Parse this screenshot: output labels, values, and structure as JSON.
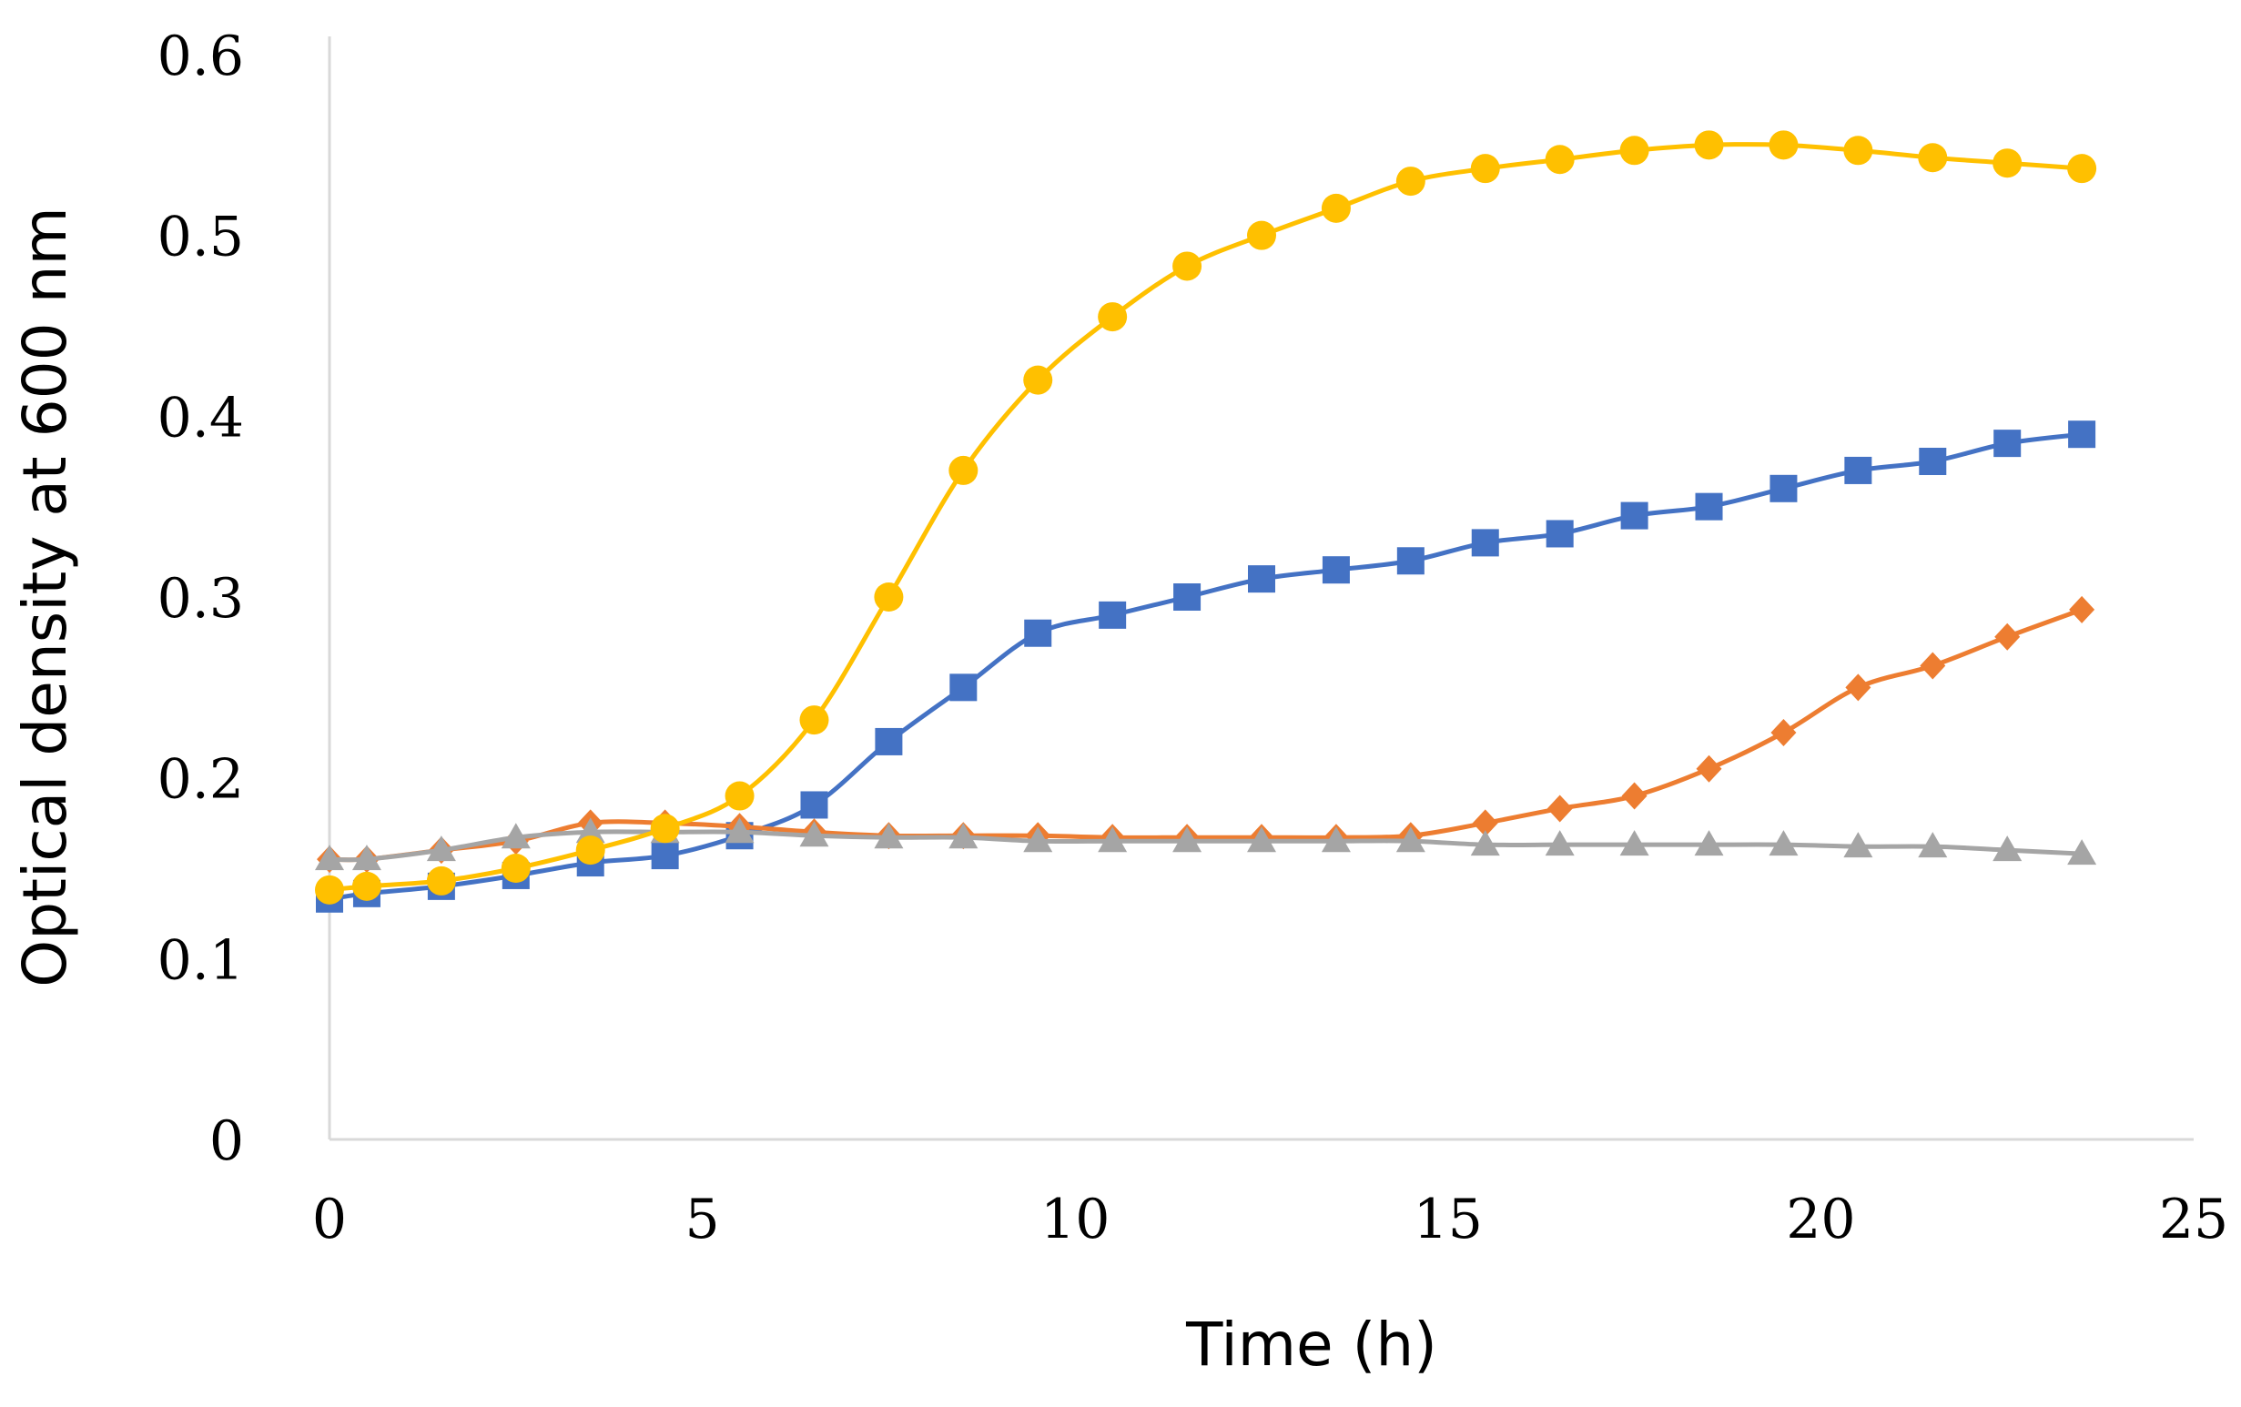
{
  "chart_data": {
    "type": "line",
    "title": "",
    "xlabel": "Time (h)",
    "ylabel": "Optical density at 600 nm",
    "xlim": [
      0,
      25
    ],
    "ylim": [
      0,
      0.6
    ],
    "x_ticks": [
      0,
      5,
      10,
      15,
      20,
      25
    ],
    "y_ticks": [
      0,
      0.1,
      0.2,
      0.3,
      0.4,
      0.5,
      0.6
    ],
    "x_tick_labels": [
      "0",
      "5",
      "10",
      "15",
      "20",
      "25"
    ],
    "y_tick_labels": [
      "0",
      "0.1",
      "0.2",
      "0.3",
      "0.4",
      "0.5",
      "0.6"
    ],
    "grid": false,
    "legend": "none",
    "x": [
      0,
      0.5,
      1.5,
      2.5,
      3.5,
      4.5,
      5.5,
      6.5,
      7.5,
      8.5,
      9.5,
      10.5,
      11.5,
      12.5,
      13.5,
      14.5,
      15.5,
      16.5,
      17.5,
      18.5,
      19.5,
      20.5,
      21.5,
      22.5,
      23.5
    ],
    "series": [
      {
        "name": "blue-squares",
        "color": "#4472C4",
        "marker": "square",
        "values": [
          0.133,
          0.136,
          0.14,
          0.146,
          0.153,
          0.157,
          0.168,
          0.185,
          0.22,
          0.25,
          0.28,
          0.29,
          0.3,
          0.31,
          0.315,
          0.32,
          0.33,
          0.335,
          0.345,
          0.35,
          0.36,
          0.37,
          0.375,
          0.385,
          0.39
        ]
      },
      {
        "name": "orange-diamonds",
        "color": "#ED7D31",
        "marker": "diamond",
        "values": [
          0.155,
          0.155,
          0.16,
          0.165,
          0.175,
          0.175,
          0.173,
          0.17,
          0.168,
          0.168,
          0.168,
          0.167,
          0.167,
          0.167,
          0.167,
          0.168,
          0.175,
          0.183,
          0.19,
          0.205,
          0.225,
          0.25,
          0.262,
          0.278,
          0.293
        ]
      },
      {
        "name": "gray-triangles",
        "color": "#A5A5A5",
        "marker": "triangle",
        "values": [
          0.155,
          0.155,
          0.16,
          0.167,
          0.17,
          0.17,
          0.17,
          0.168,
          0.167,
          0.167,
          0.165,
          0.165,
          0.165,
          0.165,
          0.165,
          0.165,
          0.163,
          0.163,
          0.163,
          0.163,
          0.163,
          0.162,
          0.162,
          0.16,
          0.158
        ]
      },
      {
        "name": "yellow-circles",
        "color": "#FFC000",
        "marker": "circle",
        "values": [
          0.138,
          0.14,
          0.143,
          0.15,
          0.16,
          0.172,
          0.19,
          0.232,
          0.3,
          0.37,
          0.42,
          0.455,
          0.483,
          0.5,
          0.515,
          0.53,
          0.537,
          0.542,
          0.547,
          0.55,
          0.55,
          0.547,
          0.543,
          0.54,
          0.537
        ]
      }
    ]
  }
}
